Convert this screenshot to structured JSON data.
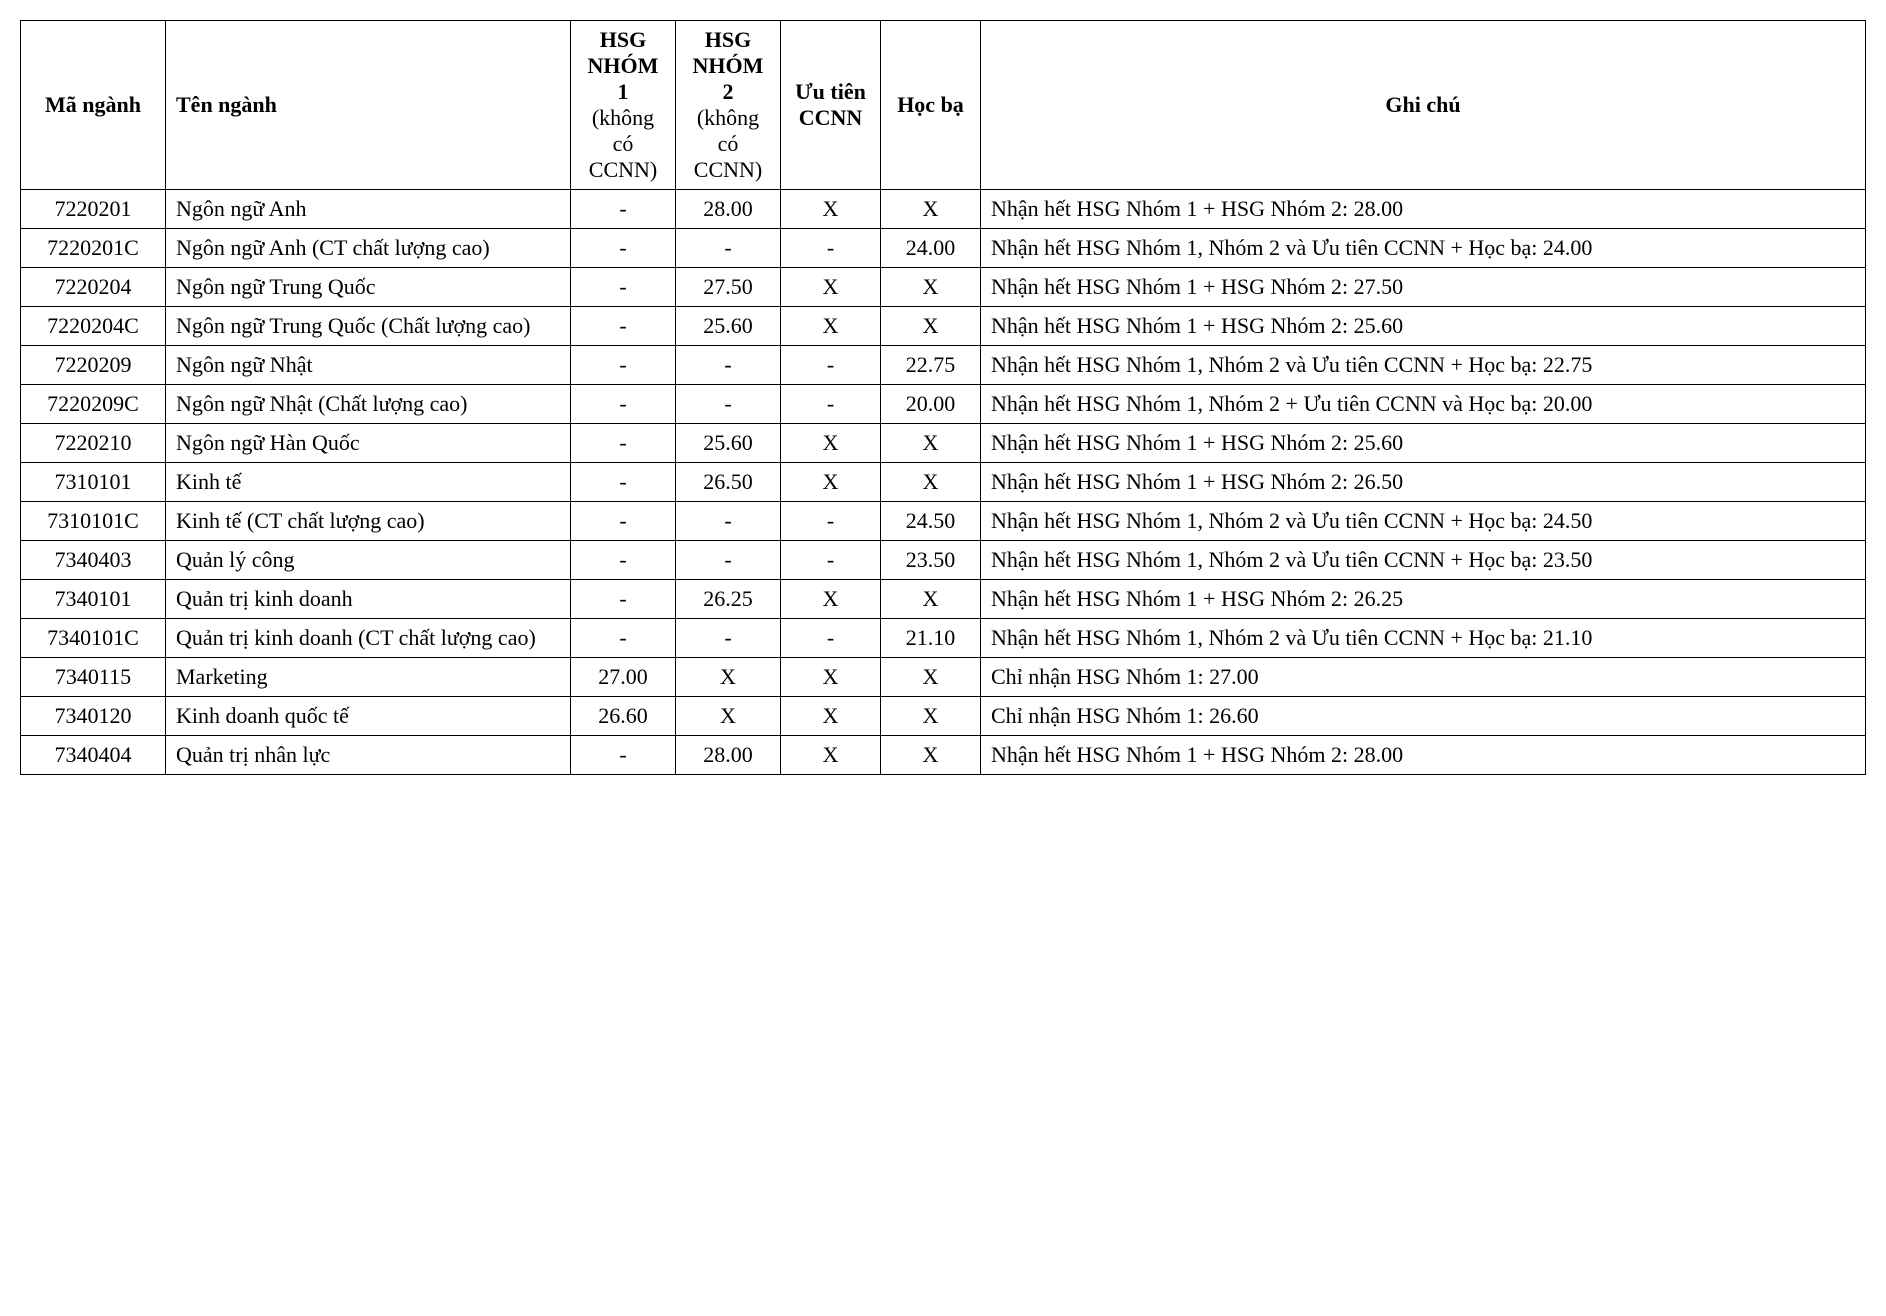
{
  "table": {
    "columns": {
      "ma_nganh": "Mã ngành",
      "ten_nganh": "Tên ngành",
      "hsg1_main": "HSG NHÓM 1",
      "hsg1_sub": "(không có CCNN)",
      "hsg2_main": "HSG NHÓM 2",
      "hsg2_sub": "(không có CCNN)",
      "uutien": "Ưu tiên CCNN",
      "hocba": "Học bạ",
      "ghichu": "Ghi chú"
    },
    "rows": [
      {
        "ma_nganh": "7220201",
        "ten_nganh": "Ngôn ngữ Anh",
        "hsg1": "-",
        "hsg2": "28.00",
        "uutien": "X",
        "hocba": "X",
        "ghichu": "Nhận hết HSG Nhóm 1 + HSG Nhóm 2: 28.00"
      },
      {
        "ma_nganh": "7220201C",
        "ten_nganh": "Ngôn ngữ Anh (CT chất lượng cao)",
        "hsg1": "-",
        "hsg2": "-",
        "uutien": "-",
        "hocba": "24.00",
        "ghichu": "Nhận hết HSG Nhóm 1, Nhóm 2 và Ưu tiên CCNN + Học bạ: 24.00"
      },
      {
        "ma_nganh": "7220204",
        "ten_nganh": "Ngôn ngữ Trung Quốc",
        "hsg1": "-",
        "hsg2": "27.50",
        "uutien": "X",
        "hocba": "X",
        "ghichu": "Nhận hết HSG Nhóm 1 + HSG Nhóm 2: 27.50"
      },
      {
        "ma_nganh": "7220204C",
        "ten_nganh": "Ngôn ngữ Trung Quốc (Chất lượng cao)",
        "hsg1": "-",
        "hsg2": "25.60",
        "uutien": "X",
        "hocba": "X",
        "ghichu": "Nhận hết HSG Nhóm 1 + HSG Nhóm 2: 25.60"
      },
      {
        "ma_nganh": "7220209",
        "ten_nganh": "Ngôn ngữ Nhật",
        "hsg1": "-",
        "hsg2": "-",
        "uutien": "-",
        "hocba": "22.75",
        "ghichu": "Nhận hết HSG Nhóm 1,  Nhóm 2 và Ưu tiên CCNN + Học bạ: 22.75"
      },
      {
        "ma_nganh": "7220209C",
        "ten_nganh": "Ngôn ngữ Nhật  (Chất lượng cao)",
        "hsg1": "-",
        "hsg2": "-",
        "uutien": "-",
        "hocba": "20.00",
        "ghichu": "Nhận hết HSG Nhóm 1,  Nhóm 2 + Ưu tiên CCNN và Học bạ: 20.00"
      },
      {
        "ma_nganh": "7220210",
        "ten_nganh": "Ngôn ngữ Hàn Quốc",
        "hsg1": "-",
        "hsg2": "25.60",
        "uutien": "X",
        "hocba": "X",
        "ghichu": "Nhận hết HSG Nhóm 1 + HSG Nhóm 2: 25.60"
      },
      {
        "ma_nganh": "7310101",
        "ten_nganh": "Kinh tế",
        "hsg1": "-",
        "hsg2": "26.50",
        "uutien": "X",
        "hocba": "X",
        "ghichu": "Nhận hết HSG Nhóm 1 + HSG Nhóm 2: 26.50"
      },
      {
        "ma_nganh": "7310101C",
        "ten_nganh": "Kinh tế (CT chất lượng cao)",
        "hsg1": "-",
        "hsg2": "-",
        "uutien": "-",
        "hocba": "24.50",
        "ghichu": "Nhận hết HSG Nhóm 1, Nhóm 2 và Ưu tiên CCNN + Học bạ: 24.50"
      },
      {
        "ma_nganh": "7340403",
        "ten_nganh": "Quản lý công",
        "hsg1": "-",
        "hsg2": "-",
        "uutien": "-",
        "hocba": "23.50",
        "ghichu": "Nhận hết HSG Nhóm 1, Nhóm 2 và Ưu tiên CCNN + Học bạ: 23.50"
      },
      {
        "ma_nganh": "7340101",
        "ten_nganh": "Quản trị kinh doanh",
        "hsg1": "-",
        "hsg2": "26.25",
        "uutien": "X",
        "hocba": "X",
        "ghichu": "Nhận hết HSG Nhóm 1 + HSG Nhóm 2: 26.25"
      },
      {
        "ma_nganh": "7340101C",
        "ten_nganh": "Quản trị kinh doanh (CT chất lượng cao)",
        "hsg1": "-",
        "hsg2": "-",
        "uutien": "-",
        "hocba": "21.10",
        "ghichu": "Nhận hết HSG Nhóm 1,  Nhóm 2 và Ưu tiên CCNN + Học bạ: 21.10"
      },
      {
        "ma_nganh": "7340115",
        "ten_nganh": "Marketing",
        "hsg1": "27.00",
        "hsg2": "X",
        "uutien": "X",
        "hocba": "X",
        "ghichu": "Chỉ nhận HSG Nhóm 1: 27.00"
      },
      {
        "ma_nganh": "7340120",
        "ten_nganh": "Kinh doanh quốc tế",
        "hsg1": "26.60",
        "hsg2": "X",
        "uutien": "X",
        "hocba": "X",
        "ghichu": "Chỉ nhận HSG Nhóm 1: 26.60"
      },
      {
        "ma_nganh": "7340404",
        "ten_nganh": "Quản trị nhân lực",
        "hsg1": "-",
        "hsg2": "28.00",
        "uutien": "X",
        "hocba": "X",
        "ghichu": "Nhận hết HSG Nhóm 1 + HSG Nhóm 2: 28.00"
      }
    ]
  }
}
